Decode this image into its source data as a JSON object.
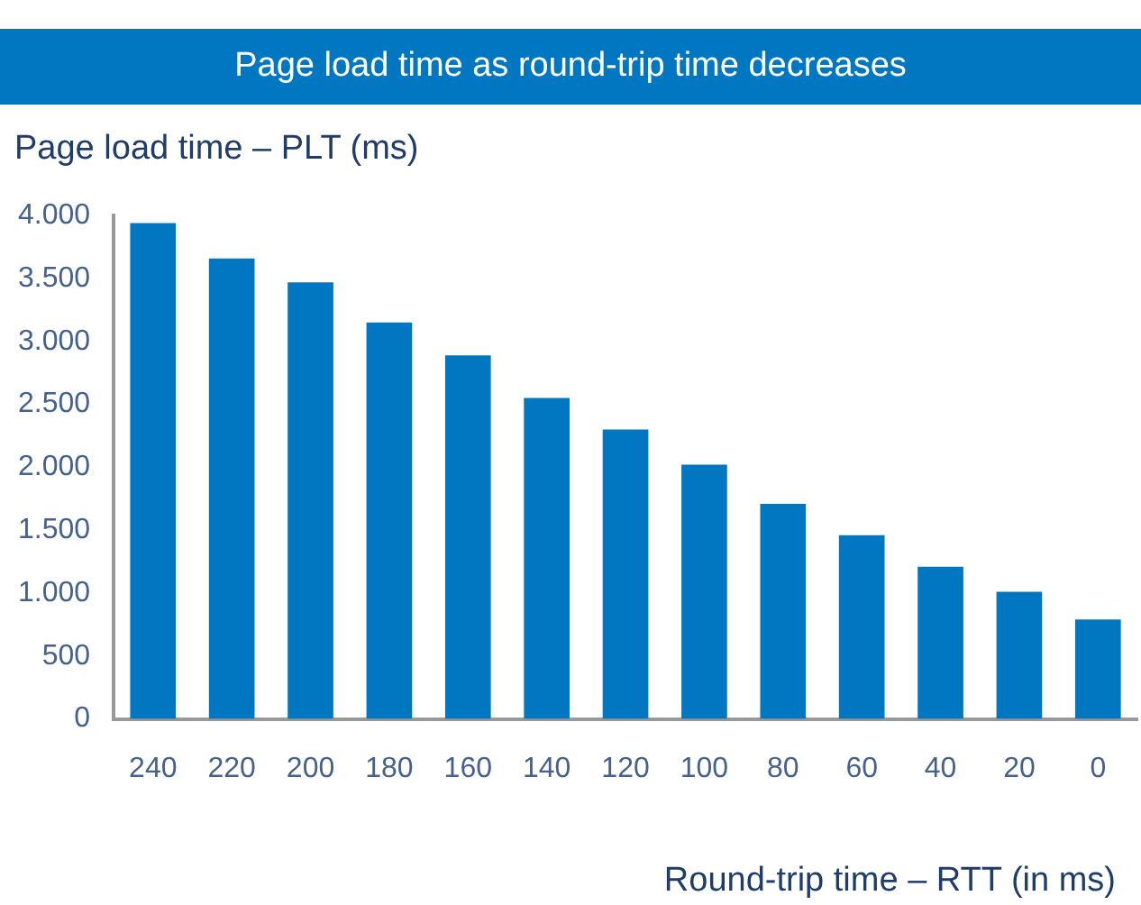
{
  "chart_data": {
    "type": "bar",
    "title": "Page load time as round-trip time decreases",
    "ylabel": "Page load time – PLT (ms)",
    "xlabel": "Round-trip time – RTT (in ms)",
    "categories": [
      "240",
      "220",
      "200",
      "180",
      "160",
      "140",
      "120",
      "100",
      "80",
      "60",
      "40",
      "20",
      "0"
    ],
    "values": [
      3940,
      3660,
      3470,
      3150,
      2890,
      2550,
      2300,
      2020,
      1710,
      1460,
      1210,
      1010,
      790
    ],
    "color": "#0077c0",
    "ylim": [
      0,
      4000
    ],
    "yticks": [
      {
        "value": 0,
        "label": "0"
      },
      {
        "value": 500,
        "label": "500"
      },
      {
        "value": 1000,
        "label": "1.000"
      },
      {
        "value": 1500,
        "label": "1.500"
      },
      {
        "value": 2000,
        "label": "2.000"
      },
      {
        "value": 2500,
        "label": "2.500"
      },
      {
        "value": 3000,
        "label": "3.000"
      },
      {
        "value": 3500,
        "label": "3.500"
      },
      {
        "value": 4000,
        "label": "4.000"
      }
    ],
    "grid": false,
    "legend": false
  }
}
